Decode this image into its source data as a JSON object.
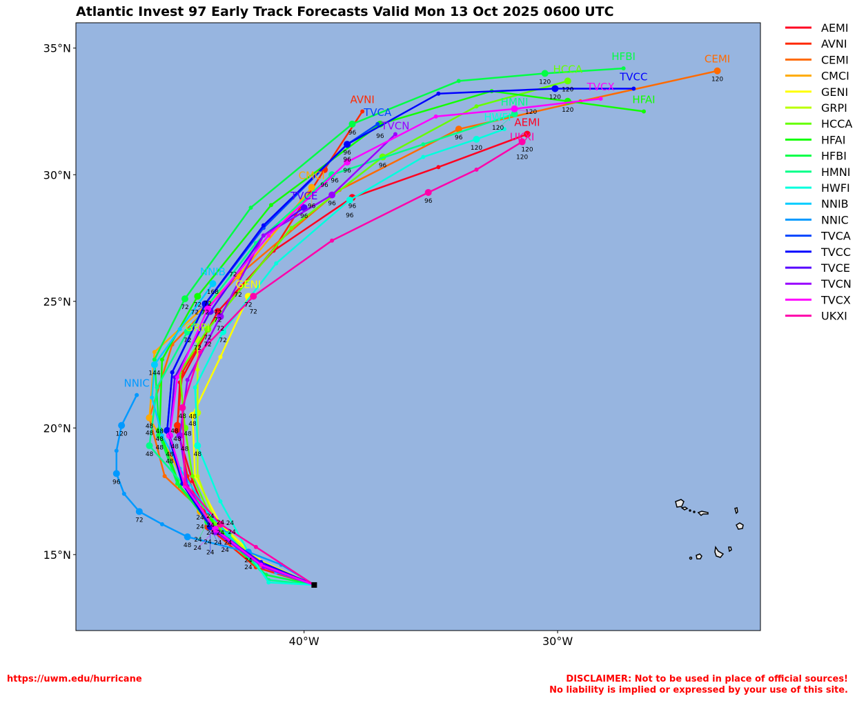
{
  "chart_data": {
    "type": "line",
    "title": "Atlantic Invest 97 Early Track Forecasts Valid Mon 13 Oct 2025 0600 UTC",
    "xlabel": "",
    "ylabel": "",
    "xlim": [
      -49,
      -22
    ],
    "ylim": [
      12,
      36
    ],
    "x_ticks": [
      {
        "value": -40,
        "label": "40°W"
      },
      {
        "value": -30,
        "label": "30°W"
      }
    ],
    "y_ticks": [
      {
        "value": 15,
        "label": "15°N"
      },
      {
        "value": 20,
        "label": "20°N"
      },
      {
        "value": 25,
        "label": "25°N"
      },
      {
        "value": 30,
        "label": "30°N"
      },
      {
        "value": 35,
        "label": "35°N"
      }
    ],
    "grid": false,
    "legend_position": "right-outside",
    "colors": {
      "ocean": "#97b5e0",
      "land": "#e6e6e6"
    },
    "start": [
      -39.6,
      13.8
    ],
    "series": [
      {
        "name": "AEMI",
        "color": "#ff0020",
        "points": [
          [
            -39.6,
            13.8
          ],
          [
            -41.7,
            14.7
          ],
          [
            -43.7,
            16.2
          ],
          [
            -44.4,
            17.9
          ],
          [
            -45.0,
            19.9
          ],
          [
            -44.9,
            21.8
          ],
          [
            -43.4,
            24.6
          ],
          [
            -41.2,
            27.0
          ],
          [
            -38.1,
            29.1
          ],
          [
            -34.7,
            30.3
          ],
          [
            -31.2,
            31.6
          ]
        ],
        "hours": [
          0,
          12,
          24,
          36,
          48,
          60,
          72,
          84,
          96,
          108,
          120
        ]
      },
      {
        "name": "AVNI",
        "color": "#ff2a00",
        "points": [
          [
            -39.6,
            13.8
          ],
          [
            -41.9,
            14.5
          ],
          [
            -43.8,
            16.1
          ],
          [
            -44.6,
            18.1
          ],
          [
            -45.0,
            20.1
          ],
          [
            -44.8,
            22.2
          ],
          [
            -43.8,
            23.9
          ],
          [
            -41.1,
            27.2
          ],
          [
            -39.2,
            30.2
          ],
          [
            -37.7,
            32.5
          ]
        ],
        "hours": [
          0,
          12,
          24,
          36,
          48,
          60,
          72,
          84,
          96,
          108
        ]
      },
      {
        "name": "CEMI",
        "color": "#ff6a00",
        "points": [
          [
            -39.6,
            13.8
          ],
          [
            -41.9,
            14.6
          ],
          [
            -44.1,
            16.8
          ],
          [
            -45.5,
            18.1
          ],
          [
            -46.1,
            20.4
          ],
          [
            -45.2,
            23.3
          ],
          [
            -42.5,
            26.1
          ],
          [
            -38.6,
            29.4
          ],
          [
            -33.9,
            31.8
          ],
          [
            -29.1,
            32.9
          ],
          [
            -23.7,
            34.1
          ]
        ],
        "hours": [
          0,
          12,
          24,
          36,
          48,
          60,
          72,
          84,
          96,
          108,
          120
        ]
      },
      {
        "name": "CMCI",
        "color": "#ffaa00",
        "points": [
          [
            -39.6,
            13.8
          ],
          [
            -41.8,
            14.7
          ],
          [
            -44.1,
            16.7
          ],
          [
            -45.2,
            18.8
          ],
          [
            -46.1,
            20.4
          ],
          [
            -45.9,
            23.0
          ],
          [
            -42.6,
            26.0
          ],
          [
            -40.1,
            29.0
          ],
          [
            -39.7,
            29.5
          ]
        ],
        "hours": [
          0,
          12,
          24,
          36,
          48,
          60,
          72,
          84,
          96
        ]
      },
      {
        "name": "GENI",
        "color": "#ffff00",
        "points": [
          [
            -39.6,
            13.8
          ],
          [
            -41.8,
            14.8
          ],
          [
            -43.3,
            16.2
          ],
          [
            -44.3,
            18.1
          ],
          [
            -44.4,
            20.5
          ],
          [
            -43.3,
            22.8
          ],
          [
            -42.2,
            25.2
          ]
        ],
        "hours": [
          0,
          12,
          24,
          36,
          48,
          60,
          72
        ]
      },
      {
        "name": "GRPI",
        "color": "#bbff00",
        "points": [
          [
            -39.6,
            13.8
          ],
          [
            -41.9,
            14.8
          ],
          [
            -43.5,
            16.3
          ],
          [
            -44.2,
            18.1
          ],
          [
            -44.2,
            20.6
          ],
          [
            -44.2,
            22.3
          ],
          [
            -44.2,
            23.5
          ]
        ],
        "hours": [
          0,
          12,
          24,
          36,
          48,
          60,
          72
        ]
      },
      {
        "name": "HCCA",
        "color": "#66ff00",
        "points": [
          [
            -39.6,
            13.8
          ],
          [
            -41.9,
            14.7
          ],
          [
            -43.6,
            16.3
          ],
          [
            -44.4,
            18.1
          ],
          [
            -44.7,
            20.0
          ],
          [
            -44.9,
            22.2
          ],
          [
            -43.8,
            23.9
          ],
          [
            -40.5,
            27.9
          ],
          [
            -36.9,
            30.7
          ],
          [
            -33.2,
            32.7
          ],
          [
            -29.6,
            33.7
          ]
        ],
        "hours": [
          0,
          12,
          24,
          36,
          48,
          60,
          72,
          84,
          96,
          108,
          120
        ]
      },
      {
        "name": "HFAI",
        "color": "#11ff00",
        "points": [
          [
            -39.6,
            13.8
          ],
          [
            -41.8,
            14.6
          ],
          [
            -43.7,
            16.3
          ],
          [
            -44.9,
            17.7
          ],
          [
            -45.7,
            19.9
          ],
          [
            -45.6,
            22.7
          ],
          [
            -44.2,
            25.2
          ],
          [
            -41.3,
            28.8
          ],
          [
            -37.0,
            32.0
          ],
          [
            -32.6,
            33.3
          ],
          [
            -29.6,
            32.9
          ],
          [
            -26.6,
            32.5
          ]
        ],
        "hours": [
          0,
          12,
          24,
          36,
          48,
          60,
          72,
          84,
          96,
          108,
          120,
          132
        ]
      },
      {
        "name": "HFBI",
        "color": "#00ff44",
        "points": [
          [
            -39.6,
            13.8
          ],
          [
            -41.5,
            14.2
          ],
          [
            -43.8,
            16.3
          ],
          [
            -45.0,
            17.8
          ],
          [
            -45.7,
            19.7
          ],
          [
            -45.9,
            22.7
          ],
          [
            -44.7,
            25.1
          ],
          [
            -42.1,
            28.7
          ],
          [
            -38.1,
            32.0
          ],
          [
            -33.9,
            33.7
          ],
          [
            -30.5,
            34.0
          ],
          [
            -27.4,
            34.2
          ]
        ],
        "hours": [
          0,
          12,
          24,
          36,
          48,
          60,
          72,
          84,
          96,
          108,
          120,
          132
        ]
      },
      {
        "name": "HMNI",
        "color": "#00ff88",
        "points": [
          [
            -39.6,
            13.8
          ],
          [
            -41.4,
            14.0
          ],
          [
            -43.0,
            15.8
          ],
          [
            -44.7,
            17.7
          ],
          [
            -46.1,
            19.3
          ],
          [
            -45.8,
            21.6
          ],
          [
            -44.6,
            23.8
          ],
          [
            -41.9,
            27.3
          ],
          [
            -38.9,
            30.0
          ],
          [
            -35.3,
            31.2
          ],
          [
            -31.7,
            32.4
          ]
        ],
        "hours": [
          0,
          12,
          24,
          36,
          48,
          60,
          72,
          84,
          96,
          108,
          120
        ]
      },
      {
        "name": "HWFI",
        "color": "#00ffdd",
        "points": [
          [
            -39.6,
            13.8
          ],
          [
            -41.4,
            13.9
          ],
          [
            -42.2,
            15.1
          ],
          [
            -43.3,
            17.1
          ],
          [
            -44.2,
            19.3
          ],
          [
            -44.3,
            21.6
          ],
          [
            -43.2,
            23.8
          ],
          [
            -41.1,
            26.5
          ],
          [
            -38.2,
            29.0
          ],
          [
            -35.3,
            30.7
          ],
          [
            -33.2,
            31.4
          ],
          [
            -32.1,
            31.8
          ]
        ],
        "hours": [
          0,
          12,
          24,
          36,
          48,
          60,
          72,
          84,
          96,
          108,
          120,
          132
        ]
      },
      {
        "name": "NNIB",
        "color": "#00ccff",
        "points": [
          [
            -39.6,
            13.8
          ],
          [
            -41.1,
            14.3
          ],
          [
            -42.5,
            15.2
          ],
          [
            -43.8,
            16.7
          ],
          [
            -44.9,
            18.4
          ],
          [
            -45.6,
            19.7
          ],
          [
            -46.0,
            21.2
          ],
          [
            -45.9,
            22.5
          ],
          [
            -44.9,
            23.9
          ],
          [
            -43.6,
            25.7
          ]
        ],
        "hours": [
          0,
          null,
          null,
          null,
          null,
          null,
          null,
          144,
          null,
          168
        ]
      },
      {
        "name": "NNIC",
        "color": "#0099ff",
        "points": [
          [
            -39.6,
            13.8
          ],
          [
            -40.9,
            14.6
          ],
          [
            -42.2,
            15.1
          ],
          [
            -44.6,
            15.7
          ],
          [
            -45.6,
            16.2
          ],
          [
            -46.5,
            16.7
          ],
          [
            -47.1,
            17.4
          ],
          [
            -47.4,
            18.2
          ],
          [
            -47.4,
            19.1
          ],
          [
            -47.2,
            20.1
          ],
          [
            -46.6,
            21.3
          ]
        ],
        "hours": [
          0,
          12,
          24,
          48,
          60,
          72,
          84,
          96,
          108,
          120,
          132
        ]
      },
      {
        "name": "TVCA",
        "color": "#0044ff",
        "points": [
          [
            -39.6,
            13.8
          ],
          [
            -41.7,
            14.7
          ],
          [
            -43.7,
            16.1
          ],
          [
            -44.8,
            17.8
          ],
          [
            -45.4,
            19.9
          ],
          [
            -45.2,
            22.2
          ],
          [
            -43.9,
            24.9
          ],
          [
            -41.6,
            27.9
          ],
          [
            -38.3,
            31.2
          ],
          [
            -37.1,
            32.0
          ]
        ],
        "hours": [
          0,
          12,
          24,
          36,
          48,
          60,
          72,
          84,
          96,
          108
        ]
      },
      {
        "name": "TVCC",
        "color": "#0000ff",
        "points": [
          [
            -39.6,
            13.8
          ],
          [
            -41.7,
            14.7
          ],
          [
            -43.7,
            16.1
          ],
          [
            -44.8,
            17.8
          ],
          [
            -45.4,
            19.9
          ],
          [
            -45.2,
            22.2
          ],
          [
            -43.9,
            24.9
          ],
          [
            -41.6,
            28.0
          ],
          [
            -38.3,
            31.2
          ],
          [
            -34.7,
            33.2
          ],
          [
            -30.1,
            33.4
          ],
          [
            -27.0,
            33.4
          ]
        ],
        "hours": [
          0,
          12,
          24,
          36,
          48,
          60,
          72,
          84,
          96,
          108,
          120,
          132
        ]
      },
      {
        "name": "TVCE",
        "color": "#5500ff",
        "points": [
          [
            -39.6,
            13.8
          ],
          [
            -41.6,
            14.6
          ],
          [
            -43.5,
            16.0
          ],
          [
            -44.7,
            17.7
          ],
          [
            -45.3,
            19.7
          ],
          [
            -45.1,
            22.0
          ],
          [
            -43.7,
            24.6
          ],
          [
            -41.6,
            27.6
          ],
          [
            -40.0,
            28.7
          ]
        ],
        "hours": [
          0,
          12,
          24,
          36,
          48,
          60,
          72,
          84,
          96
        ]
      },
      {
        "name": "TVCN",
        "color": "#9900ff",
        "points": [
          [
            -39.6,
            13.8
          ],
          [
            -41.6,
            14.5
          ],
          [
            -43.5,
            15.9
          ],
          [
            -44.6,
            17.7
          ],
          [
            -44.9,
            19.7
          ],
          [
            -44.6,
            21.9
          ],
          [
            -43.3,
            24.4
          ],
          [
            -41.6,
            27.6
          ],
          [
            -38.9,
            29.2
          ],
          [
            -36.4,
            31.6
          ]
        ],
        "hours": [
          0,
          12,
          24,
          36,
          48,
          60,
          72,
          84,
          96,
          108
        ]
      },
      {
        "name": "TVCX",
        "color": "#ff00ff",
        "points": [
          [
            -39.6,
            13.8
          ],
          [
            -41.7,
            14.6
          ],
          [
            -43.5,
            16.0
          ],
          [
            -44.7,
            17.7
          ],
          [
            -45.3,
            19.7
          ],
          [
            -45.0,
            22.0
          ],
          [
            -43.8,
            24.7
          ],
          [
            -41.4,
            27.6
          ],
          [
            -38.3,
            30.5
          ],
          [
            -34.8,
            32.3
          ],
          [
            -31.7,
            32.6
          ],
          [
            -28.3,
            33.0
          ]
        ],
        "hours": [
          0,
          12,
          24,
          36,
          48,
          60,
          72,
          84,
          96,
          108,
          120,
          132
        ]
      },
      {
        "name": "UKXI",
        "color": "#ff00aa",
        "points": [
          [
            -39.6,
            13.8
          ],
          [
            -41.9,
            15.3
          ],
          [
            -43.3,
            16.2
          ],
          [
            -44.7,
            17.8
          ],
          [
            -44.8,
            20.8
          ],
          [
            -44.1,
            23.0
          ],
          [
            -42.0,
            25.2
          ],
          [
            -38.9,
            27.4
          ],
          [
            -35.1,
            29.3
          ],
          [
            -33.2,
            30.2
          ],
          [
            -31.4,
            31.3
          ]
        ],
        "hours": [
          0,
          12,
          24,
          36,
          48,
          60,
          72,
          84,
          96,
          108,
          120
        ]
      }
    ]
  },
  "footer": {
    "url": "https://uwm.edu/hurricane",
    "disclaimer_line1": "DISCLAIMER: Not to be used in place of official sources!",
    "disclaimer_line2": "No liability is implied or expressed by your use of this site."
  }
}
